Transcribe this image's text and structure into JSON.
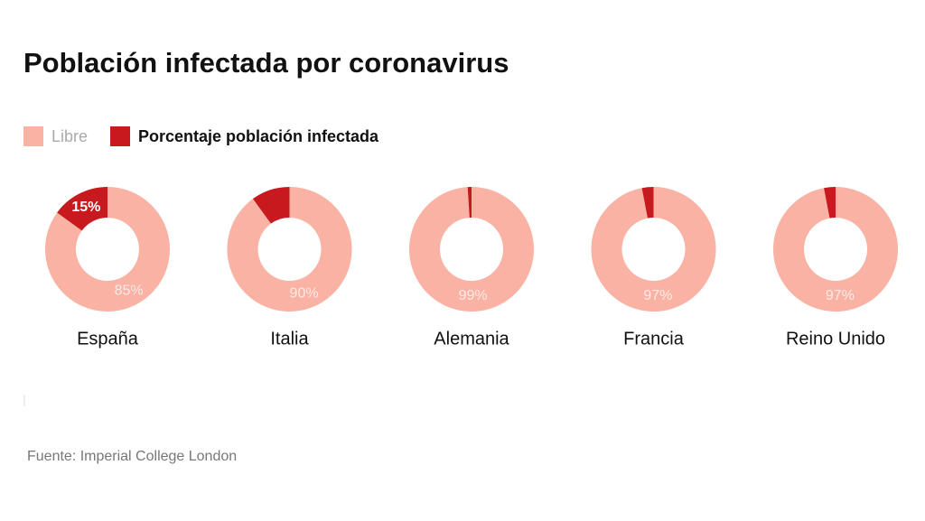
{
  "title": "Población infectada por coronavirus",
  "source": "Fuente: Imperial College London",
  "legend": [
    {
      "name": "Libre",
      "color": "#f9b2a3"
    },
    {
      "name": "Porcentaje población infectada",
      "color": "#c8191e"
    }
  ],
  "chart_data": [
    {
      "type": "donut",
      "title": "España",
      "values": [
        85,
        15
      ],
      "value_labels": [
        "85%",
        "15%"
      ]
    },
    {
      "type": "donut",
      "title": "Italia",
      "values": [
        90,
        10
      ],
      "value_labels": [
        "90%",
        null
      ]
    },
    {
      "type": "donut",
      "title": "Alemania",
      "values": [
        99,
        1
      ],
      "value_labels": [
        "99%",
        null
      ]
    },
    {
      "type": "donut",
      "title": "Francia",
      "values": [
        97,
        3
      ],
      "value_labels": [
        "97%",
        null
      ]
    },
    {
      "type": "donut",
      "title": "Reino Unido",
      "values": [
        97,
        3
      ],
      "value_labels": [
        "97%",
        null
      ]
    }
  ]
}
